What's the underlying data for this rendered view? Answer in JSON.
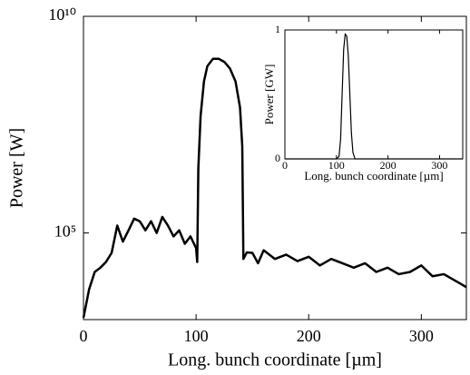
{
  "chart_data": [
    {
      "type": "line",
      "xlabel": "Long. bunch coordinate [µm]",
      "ylabel": "Power [W]",
      "yscale": "log",
      "xlim": [
        0,
        340
      ],
      "xticks": [
        0,
        100,
        200,
        300
      ],
      "ylim": [
        1000,
        10000000000
      ],
      "yticks": [
        {
          "value": 100000,
          "label": "10⁵"
        },
        {
          "value": 10000000000,
          "label": "10¹⁰"
        }
      ],
      "color": "#000000",
      "x": [
        0,
        5,
        10,
        15,
        20,
        25,
        30,
        35,
        40,
        45,
        50,
        55,
        60,
        65,
        70,
        75,
        80,
        85,
        90,
        95,
        100,
        101,
        102,
        104,
        107,
        110,
        115,
        120,
        125,
        130,
        135,
        139,
        141,
        142,
        145,
        150,
        155,
        160,
        170,
        180,
        190,
        200,
        210,
        220,
        230,
        240,
        250,
        260,
        270,
        280,
        290,
        300,
        310,
        320,
        330,
        340
      ],
      "values": [
        1100,
        5000,
        12600,
        15800,
        21400,
        34700,
        148000,
        63100,
        115000,
        214000,
        186000,
        115000,
        186000,
        100000,
        234000,
        148000,
        83200,
        115000,
        56200,
        83200,
        44700,
        21400,
        3160000,
        50100000,
        316000000,
        708000000,
        1050000000,
        1050000000,
        891000000,
        631000000,
        316000000,
        79400000,
        10000000,
        25100,
        35500,
        34700,
        20000,
        39800,
        25100,
        31600,
        22400,
        28200,
        17800,
        25100,
        20000,
        15800,
        20000,
        12600,
        15800,
        11200,
        12600,
        17800,
        10000,
        11200,
        7940,
        5620
      ]
    },
    {
      "type": "line",
      "xlabel": "Long. bunch coordinate [µm]",
      "ylabel": "Power [GW]",
      "xlim": [
        0,
        345
      ],
      "xticks": [
        0,
        100,
        200,
        300
      ],
      "ylim": [
        0,
        1
      ],
      "yticks": [
        0,
        1
      ],
      "color": "#000000",
      "x": [
        0,
        100,
        105,
        108,
        111,
        114,
        117,
        120,
        123,
        126,
        129,
        132,
        136,
        345
      ],
      "values": [
        0,
        0,
        0.02,
        0.15,
        0.5,
        0.85,
        0.97,
        0.95,
        0.8,
        0.5,
        0.2,
        0.05,
        0,
        0
      ]
    }
  ]
}
